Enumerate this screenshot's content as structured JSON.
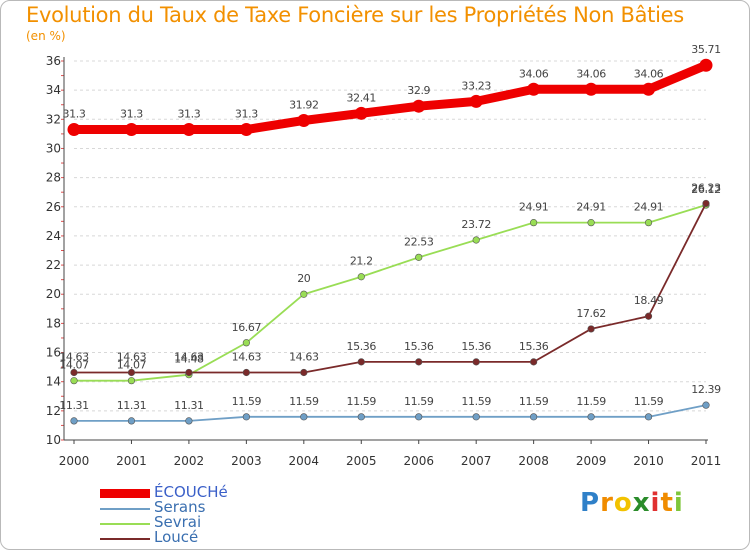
{
  "chart_data": {
    "type": "line",
    "title": "Evolution du Taux de Taxe Foncière sur les Propriétés Non Bâties",
    "ylabel": "(en %)",
    "xlabel": "",
    "ylim": [
      10,
      36
    ],
    "yticks": [
      "10",
      "12",
      "14",
      "16",
      "18",
      "20",
      "22",
      "24",
      "26",
      "28",
      "30",
      "32",
      "34",
      "36"
    ],
    "categories": [
      "2000",
      "2001",
      "2002",
      "2003",
      "2004",
      "2005",
      "2006",
      "2007",
      "2008",
      "2009",
      "2010",
      "2011"
    ],
    "grid": "horizontal dashed",
    "series": [
      {
        "name": "ÉCOUCHé",
        "color": "#ee0000",
        "values": [
          31.3,
          31.3,
          31.3,
          31.3,
          31.92,
          32.41,
          32.9,
          33.23,
          34.06,
          34.06,
          34.06,
          35.71
        ],
        "labels": [
          "31.3",
          "31.3",
          "31.3",
          "31.3",
          "31.92",
          "32.41",
          "32.9",
          "33.23",
          "34.06",
          "34.06",
          "34.06",
          "35.71"
        ]
      },
      {
        "name": "Serans",
        "color": "#6f9fc6",
        "values": [
          11.31,
          11.31,
          11.31,
          11.59,
          11.59,
          11.59,
          11.59,
          11.59,
          11.59,
          11.59,
          11.59,
          12.39
        ],
        "labels": [
          "11.31",
          "11.31",
          "11.31",
          "11.59",
          "11.59",
          "11.59",
          "11.59",
          "11.59",
          "11.59",
          "11.59",
          "11.59",
          "12.39"
        ]
      },
      {
        "name": "Sevrai",
        "color": "#99dd55",
        "values": [
          14.07,
          14.07,
          14.48,
          16.67,
          20,
          21.2,
          22.53,
          23.72,
          24.91,
          24.91,
          24.91,
          26.12
        ],
        "labels": [
          "14.07",
          "14.07",
          "14.48",
          "16.67",
          "20",
          "21.2",
          "22.53",
          "23.72",
          "24.91",
          "24.91",
          "24.91",
          "26.12"
        ]
      },
      {
        "name": "Loucé",
        "color": "#7a2a2a",
        "values": [
          14.63,
          14.63,
          14.63,
          14.63,
          14.63,
          15.36,
          15.36,
          15.36,
          15.36,
          17.62,
          18.49,
          26.23
        ],
        "labels": [
          "14.63",
          "14.63",
          "14.63",
          "14.63",
          "14.63",
          "15.36",
          "15.36",
          "15.36",
          "15.36",
          "17.62",
          "18.49",
          "26.23"
        ]
      }
    ]
  },
  "brand": {
    "letters": [
      "P",
      "r",
      "o",
      "x",
      "i",
      "t",
      "i"
    ],
    "colors": [
      "#2f80c8",
      "#f08c00",
      "#f2c200",
      "#2a8c2a",
      "#e03030",
      "#f08c00",
      "#7ec63a"
    ]
  }
}
